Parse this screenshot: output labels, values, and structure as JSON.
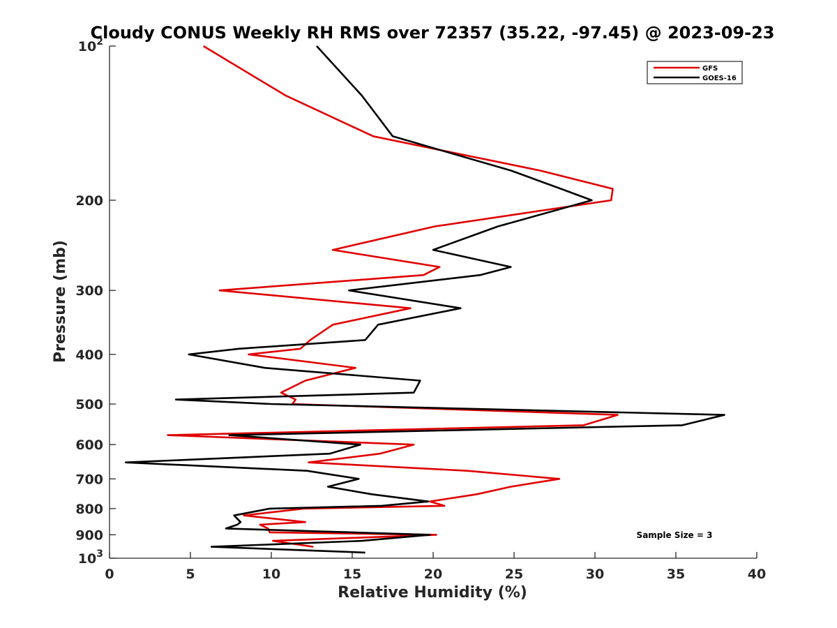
{
  "chart_data": {
    "type": "line",
    "title": "Cloudy CONUS Weekly RH RMS over 72357 (35.22, -97.45) @ 2023-09-23",
    "xlabel": "Relative Humidity (%)",
    "ylabel": "Pressure (mb)",
    "xlim": [
      0,
      40
    ],
    "ylim": [
      100,
      1000
    ],
    "y_scale": "log",
    "y_reversed": true,
    "grid": false,
    "legend_position": "top-right",
    "x_ticks": [
      "0",
      "5",
      "10",
      "15",
      "20",
      "25",
      "30",
      "35",
      "40"
    ],
    "x_tick_values": [
      0,
      5,
      10,
      15,
      20,
      25,
      30,
      35,
      40
    ],
    "y_ticks": [
      {
        "value": 100,
        "base": "10",
        "exp": "2"
      },
      {
        "value": 200,
        "label": "200"
      },
      {
        "value": 300,
        "label": "300"
      },
      {
        "value": 400,
        "label": "400"
      },
      {
        "value": 500,
        "label": "500"
      },
      {
        "value": 600,
        "label": "600"
      },
      {
        "value": 700,
        "label": "700"
      },
      {
        "value": 800,
        "label": "800"
      },
      {
        "value": 900,
        "label": "900"
      },
      {
        "value": 1000,
        "base": "10",
        "exp": "3"
      }
    ],
    "annotation": "Sample Size = 3",
    "series": [
      {
        "name": "GFS",
        "color": "#e00000",
        "points": [
          [
            5.8,
            100
          ],
          [
            10.9,
            125
          ],
          [
            16.3,
            150
          ],
          [
            26.6,
            175
          ],
          [
            31.1,
            190
          ],
          [
            31.0,
            200
          ],
          [
            20.1,
            225
          ],
          [
            13.8,
            250
          ],
          [
            20.4,
            270
          ],
          [
            19.4,
            280
          ],
          [
            6.8,
            300
          ],
          [
            18.6,
            325
          ],
          [
            13.8,
            350
          ],
          [
            12.4,
            375
          ],
          [
            11.8,
            390
          ],
          [
            8.6,
            400
          ],
          [
            15.2,
            425
          ],
          [
            12.1,
            450
          ],
          [
            10.6,
            475
          ],
          [
            11.5,
            490
          ],
          [
            11.3,
            500
          ],
          [
            31.4,
            525
          ],
          [
            29.3,
            550
          ],
          [
            3.6,
            575
          ],
          [
            18.8,
            600
          ],
          [
            16.7,
            625
          ],
          [
            12.3,
            650
          ],
          [
            22.1,
            675
          ],
          [
            27.8,
            700
          ],
          [
            24.8,
            725
          ],
          [
            22.7,
            750
          ],
          [
            19.8,
            775
          ],
          [
            20.7,
            790
          ],
          [
            12.0,
            800
          ],
          [
            8.3,
            825
          ],
          [
            12.1,
            850
          ],
          [
            9.3,
            860
          ],
          [
            9.8,
            875
          ],
          [
            9.9,
            890
          ],
          [
            20.2,
            900
          ],
          [
            10.1,
            925
          ],
          [
            12.6,
            950
          ]
        ]
      },
      {
        "name": "GOES-16",
        "color": "#000000",
        "points": [
          [
            12.8,
            100
          ],
          [
            15.6,
            125
          ],
          [
            17.5,
            150
          ],
          [
            24.8,
            175
          ],
          [
            27.9,
            190
          ],
          [
            29.8,
            200
          ],
          [
            24.0,
            225
          ],
          [
            20.0,
            250
          ],
          [
            24.8,
            270
          ],
          [
            22.9,
            280
          ],
          [
            14.8,
            300
          ],
          [
            21.7,
            325
          ],
          [
            16.6,
            350
          ],
          [
            15.8,
            375
          ],
          [
            8.0,
            390
          ],
          [
            4.9,
            400
          ],
          [
            9.6,
            425
          ],
          [
            19.2,
            450
          ],
          [
            18.8,
            475
          ],
          [
            4.1,
            490
          ],
          [
            10.0,
            500
          ],
          [
            38.0,
            525
          ],
          [
            35.4,
            550
          ],
          [
            7.4,
            575
          ],
          [
            15.5,
            600
          ],
          [
            13.6,
            625
          ],
          [
            1.0,
            650
          ],
          [
            12.2,
            675
          ],
          [
            15.4,
            700
          ],
          [
            13.5,
            725
          ],
          [
            16.2,
            750
          ],
          [
            19.7,
            775
          ],
          [
            16.8,
            790
          ],
          [
            9.9,
            800
          ],
          [
            7.7,
            825
          ],
          [
            8.1,
            850
          ],
          [
            7.9,
            860
          ],
          [
            7.2,
            875
          ],
          [
            19.8,
            900
          ],
          [
            15.6,
            925
          ],
          [
            6.3,
            950
          ],
          [
            15.8,
            975
          ]
        ]
      }
    ]
  }
}
